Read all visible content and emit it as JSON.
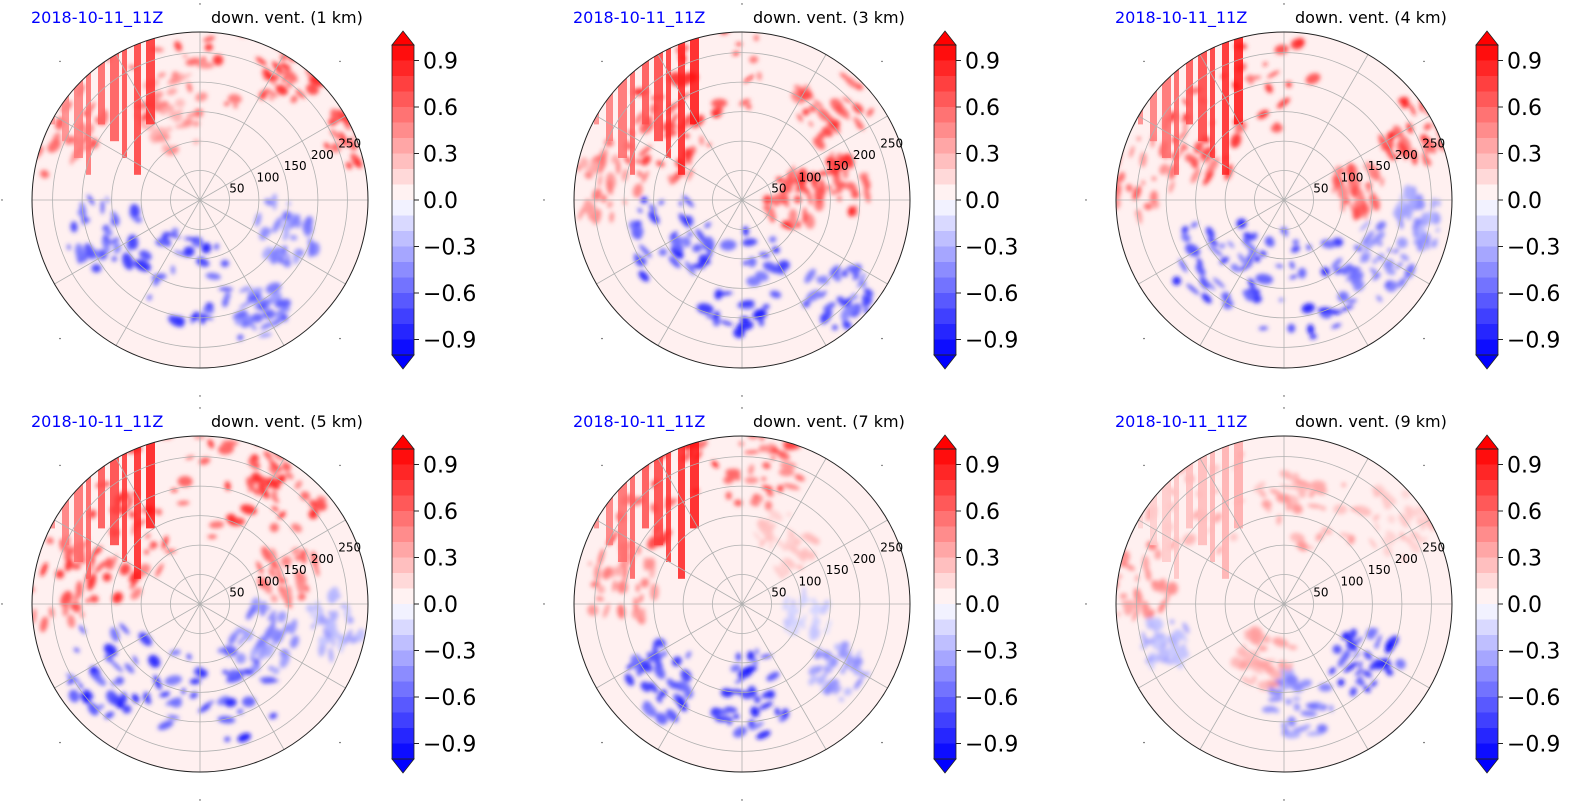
{
  "chart_data": [
    {
      "type": "heatmap",
      "projection": "polar",
      "date": "2018-10-11_11Z",
      "title": "down. vent. (1 km)",
      "radial_ticks": [
        "50",
        "100",
        "150",
        "200",
        "250"
      ],
      "colorbar": {
        "ticks": [
          "0.9",
          "0.6",
          "0.3",
          "0.0",
          "−0.3",
          "−0.6",
          "−0.9"
        ],
        "range": [
          -1.0,
          1.0
        ],
        "extend": "both"
      },
      "colors": {
        "positive": "#ff0000",
        "negative": "#0000ff",
        "zero": "#ffffff"
      },
      "regions": [
        {
          "t": -0.55,
          "r": 0.8,
          "v": 0.85,
          "s": 55
        },
        {
          "t": -0.3,
          "r": 0.92,
          "v": 0.9,
          "s": 25
        },
        {
          "t": -0.12,
          "r": 0.95,
          "v": 0.9,
          "s": 22
        },
        {
          "t": -0.85,
          "r": 0.95,
          "v": 0.8,
          "s": 35
        },
        {
          "t": 0.55,
          "r": 0.45,
          "v": -0.95,
          "s": 35
        },
        {
          "t": 0.9,
          "r": 0.6,
          "v": -0.8,
          "s": 28
        },
        {
          "t": 0.1,
          "r": 0.55,
          "v": -0.6,
          "s": 25
        },
        {
          "t": 0.35,
          "r": 0.75,
          "v": -0.7,
          "s": 22
        },
        {
          "t": -0.6,
          "r": 0.55,
          "v": 0.5,
          "s": 28
        }
      ]
    },
    {
      "type": "heatmap",
      "projection": "polar",
      "date": "2018-10-11_11Z",
      "title": "down. vent. (3 km)",
      "radial_ticks": [
        "50",
        "100",
        "150",
        "200",
        "250"
      ],
      "colorbar": {
        "ticks": [
          "0.9",
          "0.6",
          "0.3",
          "0.0",
          "−0.3",
          "−0.6",
          "−0.9"
        ],
        "range": [
          -1.0,
          1.0
        ],
        "extend": "both"
      },
      "colors": {
        "positive": "#ff0000",
        "negative": "#0000ff",
        "zero": "#ffffff"
      },
      "regions": [
        {
          "t": -0.6,
          "r": 0.82,
          "v": 0.95,
          "s": 55
        },
        {
          "t": -0.8,
          "r": 0.55,
          "v": 0.85,
          "s": 30
        },
        {
          "t": -0.25,
          "r": 0.75,
          "v": 0.8,
          "s": 28
        },
        {
          "t": -0.05,
          "r": 0.6,
          "v": 0.9,
          "s": 22
        },
        {
          "t": 0.0,
          "r": 0.3,
          "v": 0.85,
          "s": 20
        },
        {
          "t": 0.5,
          "r": 0.5,
          "v": -0.95,
          "s": 40
        },
        {
          "t": 0.85,
          "r": 0.5,
          "v": -0.9,
          "s": 32
        },
        {
          "t": 0.25,
          "r": 0.8,
          "v": -0.8,
          "s": 25
        },
        {
          "t": -0.95,
          "r": 0.85,
          "v": 0.6,
          "s": 30
        }
      ]
    },
    {
      "type": "heatmap",
      "projection": "polar",
      "date": "2018-10-11_11Z",
      "title": "down. vent. (4 km)",
      "radial_ticks": [
        "50",
        "100",
        "150",
        "200",
        "250"
      ],
      "colorbar": {
        "ticks": [
          "0.9",
          "0.6",
          "0.3",
          "0.0",
          "−0.3",
          "−0.6",
          "−0.9"
        ],
        "range": [
          -1.0,
          1.0
        ],
        "extend": "both"
      },
      "colors": {
        "positive": "#ff0000",
        "negative": "#0000ff",
        "zero": "#ffffff"
      },
      "regions": [
        {
          "t": -0.6,
          "r": 0.82,
          "v": 0.95,
          "s": 55
        },
        {
          "t": -0.8,
          "r": 0.6,
          "v": 0.85,
          "s": 30
        },
        {
          "t": -0.15,
          "r": 0.88,
          "v": 0.9,
          "s": 25
        },
        {
          "t": -0.05,
          "r": 0.45,
          "v": 0.8,
          "s": 20
        },
        {
          "t": 0.45,
          "r": 0.5,
          "v": -0.95,
          "s": 42
        },
        {
          "t": 0.75,
          "r": 0.55,
          "v": -0.95,
          "s": 35
        },
        {
          "t": 0.2,
          "r": 0.65,
          "v": -0.7,
          "s": 28
        },
        {
          "t": 0.05,
          "r": 0.8,
          "v": -0.5,
          "s": 22
        },
        {
          "t": -0.95,
          "r": 0.9,
          "v": 0.7,
          "s": 30
        }
      ]
    },
    {
      "type": "heatmap",
      "projection": "polar",
      "date": "2018-10-11_11Z",
      "title": "down. vent. (5 km)",
      "radial_ticks": [
        "50",
        "100",
        "150",
        "200",
        "250"
      ],
      "colorbar": {
        "ticks": [
          "0.9",
          "0.6",
          "0.3",
          "0.0",
          "−0.3",
          "−0.6",
          "−0.9"
        ],
        "range": [
          -1.0,
          1.0
        ],
        "extend": "both"
      },
      "colors": {
        "positive": "#ff0000",
        "negative": "#0000ff",
        "zero": "#ffffff"
      },
      "regions": [
        {
          "t": -0.55,
          "r": 0.8,
          "v": 0.95,
          "s": 60
        },
        {
          "t": -0.8,
          "r": 0.55,
          "v": 0.9,
          "s": 35
        },
        {
          "t": -0.3,
          "r": 0.85,
          "v": 0.9,
          "s": 30
        },
        {
          "t": -0.1,
          "r": 0.55,
          "v": 0.7,
          "s": 22
        },
        {
          "t": 0.45,
          "r": 0.55,
          "v": -0.95,
          "s": 45
        },
        {
          "t": 0.8,
          "r": 0.65,
          "v": -0.95,
          "s": 35
        },
        {
          "t": 0.15,
          "r": 0.45,
          "v": -0.6,
          "s": 25
        },
        {
          "t": 0.05,
          "r": 0.8,
          "v": -0.4,
          "s": 22
        },
        {
          "t": -0.95,
          "r": 0.88,
          "v": 0.9,
          "s": 32
        }
      ]
    },
    {
      "type": "heatmap",
      "projection": "polar",
      "date": "2018-10-11_11Z",
      "title": "down. vent. (7 km)",
      "radial_ticks": [
        "50",
        "100",
        "150",
        "200",
        "250"
      ],
      "colorbar": {
        "ticks": [
          "0.9",
          "0.6",
          "0.3",
          "0.0",
          "−0.3",
          "−0.6",
          "−0.9"
        ],
        "range": [
          -1.0,
          1.0
        ],
        "extend": "both"
      },
      "colors": {
        "positive": "#ff0000",
        "negative": "#0000ff",
        "zero": "#ffffff"
      },
      "regions": [
        {
          "t": -0.7,
          "r": 0.85,
          "v": 0.95,
          "s": 50
        },
        {
          "t": -0.45,
          "r": 0.78,
          "v": 0.8,
          "s": 30
        },
        {
          "t": -0.95,
          "r": 0.75,
          "v": 0.6,
          "s": 30
        },
        {
          "t": 0.45,
          "r": 0.55,
          "v": -0.95,
          "s": 32
        },
        {
          "t": 0.75,
          "r": 0.65,
          "v": -0.9,
          "s": 28
        },
        {
          "t": 0.2,
          "r": 0.7,
          "v": -0.5,
          "s": 22
        },
        {
          "t": -0.3,
          "r": 0.45,
          "v": 0.3,
          "s": 22
        },
        {
          "t": 0.05,
          "r": 0.4,
          "v": -0.25,
          "s": 18
        }
      ]
    },
    {
      "type": "heatmap",
      "projection": "polar",
      "date": "2018-10-11_11Z",
      "title": "down. vent. (9 km)",
      "radial_ticks": [
        "50",
        "100",
        "150",
        "200",
        "250"
      ],
      "colorbar": {
        "ticks": [
          "0.9",
          "0.6",
          "0.3",
          "0.0",
          "−0.3",
          "−0.6",
          "−0.9"
        ],
        "range": [
          -1.0,
          1.0
        ],
        "extend": "both"
      },
      "colors": {
        "positive": "#ff0000",
        "negative": "#0000ff",
        "zero": "#ffffff"
      },
      "regions": [
        {
          "t": -0.7,
          "r": 0.82,
          "v": 0.35,
          "s": 45
        },
        {
          "t": -0.4,
          "r": 0.6,
          "v": 0.45,
          "s": 35
        },
        {
          "t": -0.2,
          "r": 0.85,
          "v": 0.3,
          "s": 28
        },
        {
          "t": 0.2,
          "r": 0.6,
          "v": -0.95,
          "s": 25
        },
        {
          "t": 0.45,
          "r": 0.6,
          "v": -0.6,
          "s": 25
        },
        {
          "t": 0.9,
          "r": 0.75,
          "v": -0.4,
          "s": 20
        },
        {
          "t": -0.95,
          "r": 0.88,
          "v": 0.55,
          "s": 28
        },
        {
          "t": 0.6,
          "r": 0.35,
          "v": 0.4,
          "s": 22
        }
      ]
    }
  ]
}
